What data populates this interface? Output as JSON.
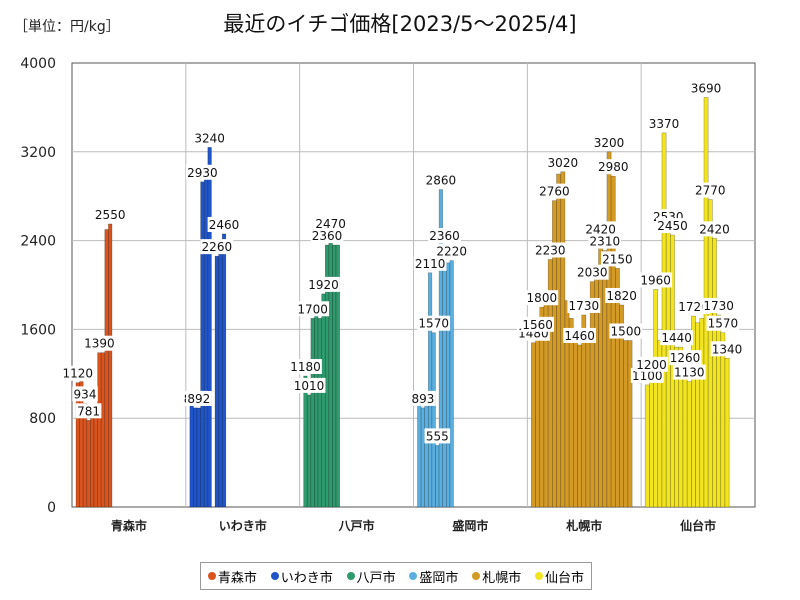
{
  "unit_label": "［単位：円/kg］",
  "chart_data": {
    "type": "bar",
    "title": "最近のイチゴ価格[2023/5～2025/4]",
    "ylabel": "円/kg",
    "ylim": [
      0,
      4000
    ],
    "yticks": [
      0,
      800,
      1600,
      2400,
      3200,
      4000
    ],
    "grid": true,
    "legend_position": "bottom",
    "series": [
      {
        "name": "青森市",
        "color": "#d9541e",
        "values": [
          1120,
          1130,
          934,
          781,
          800,
          900,
          1390,
          1390,
          2500,
          2550
        ]
      },
      {
        "name": "いわき市",
        "color": "#1f55c8",
        "values": [
          980,
          893,
          892,
          2930,
          2950,
          3240,
          null,
          2260,
          2300,
          2460
        ]
      },
      {
        "name": "八戸市",
        "color": "#2e9a6e",
        "values": [
          1180,
          1010,
          1700,
          1750,
          1700,
          1920,
          2360,
          2470,
          2360,
          2360
        ]
      },
      {
        "name": "盛岡市",
        "color": "#5aafe0",
        "values": [
          960,
          893,
          930,
          2110,
          1570,
          555,
          2860,
          2360,
          2200,
          2220
        ]
      },
      {
        "name": "札幌市",
        "color": "#d49a26",
        "values": [
          1480,
          1560,
          1800,
          1860,
          2230,
          2760,
          3000,
          3020,
          1860,
          1700,
          1560,
          1460,
          1730,
          1500,
          2030,
          2150,
          2420,
          2310,
          3200,
          2980,
          2150,
          1820,
          1500,
          1500
        ]
      },
      {
        "name": "仙台市",
        "color": "#f2e41f",
        "values": [
          1100,
          1200,
          1960,
          1500,
          3370,
          2530,
          2450,
          1440,
          1440,
          1260,
          1130,
          1720,
          1660,
          1700,
          3690,
          2770,
          2420,
          1730,
          1570,
          1340
        ]
      }
    ],
    "data_labels": [
      {
        "series": "青森市",
        "index": 0,
        "text": "1120"
      },
      {
        "series": "青森市",
        "index": 2,
        "text": "934"
      },
      {
        "series": "青森市",
        "index": 3,
        "text": "781"
      },
      {
        "series": "青森市",
        "index": 6,
        "text": "1390"
      },
      {
        "series": "青森市",
        "index": 9,
        "text": "2550"
      },
      {
        "series": "いわき市",
        "index": 1,
        "text": "893"
      },
      {
        "series": "いわき市",
        "index": 2,
        "text": "892"
      },
      {
        "series": "いわき市",
        "index": 3,
        "text": "2930"
      },
      {
        "series": "いわき市",
        "index": 5,
        "text": "3240"
      },
      {
        "series": "いわき市",
        "index": 7,
        "text": "2260"
      },
      {
        "series": "いわき市",
        "index": 9,
        "text": "2460"
      },
      {
        "series": "八戸市",
        "index": 0,
        "text": "1180"
      },
      {
        "series": "八戸市",
        "index": 1,
        "text": "1010"
      },
      {
        "series": "八戸市",
        "index": 2,
        "text": "1700"
      },
      {
        "series": "八戸市",
        "index": 5,
        "text": "1920"
      },
      {
        "series": "八戸市",
        "index": 6,
        "text": "2360"
      },
      {
        "series": "八戸市",
        "index": 7,
        "text": "2470"
      },
      {
        "series": "盛岡市",
        "index": 1,
        "text": "893"
      },
      {
        "series": "盛岡市",
        "index": 3,
        "text": "2110"
      },
      {
        "series": "盛岡市",
        "index": 4,
        "text": "1570"
      },
      {
        "series": "盛岡市",
        "index": 5,
        "text": "555"
      },
      {
        "series": "盛岡市",
        "index": 6,
        "text": "2860"
      },
      {
        "series": "盛岡市",
        "index": 7,
        "text": "2360"
      },
      {
        "series": "盛岡市",
        "index": 9,
        "text": "2220"
      },
      {
        "series": "札幌市",
        "index": 0,
        "text": "1480"
      },
      {
        "series": "札幌市",
        "index": 1,
        "text": "1560"
      },
      {
        "series": "札幌市",
        "index": 2,
        "text": "1800"
      },
      {
        "series": "札幌市",
        "index": 4,
        "text": "2230"
      },
      {
        "series": "札幌市",
        "index": 5,
        "text": "2760"
      },
      {
        "series": "札幌市",
        "index": 7,
        "text": "3020"
      },
      {
        "series": "札幌市",
        "index": 11,
        "text": "1460"
      },
      {
        "series": "札幌市",
        "index": 12,
        "text": "1730"
      },
      {
        "series": "札幌市",
        "index": 14,
        "text": "2030"
      },
      {
        "series": "札幌市",
        "index": 16,
        "text": "2420"
      },
      {
        "series": "札幌市",
        "index": 17,
        "text": "2310"
      },
      {
        "series": "札幌市",
        "index": 18,
        "text": "3200"
      },
      {
        "series": "札幌市",
        "index": 19,
        "text": "2980"
      },
      {
        "series": "札幌市",
        "index": 20,
        "text": "2150"
      },
      {
        "series": "札幌市",
        "index": 21,
        "text": "1820"
      },
      {
        "series": "札幌市",
        "index": 22,
        "text": "1500"
      },
      {
        "series": "仙台市",
        "index": 0,
        "text": "1100"
      },
      {
        "series": "仙台市",
        "index": 1,
        "text": "1200"
      },
      {
        "series": "仙台市",
        "index": 2,
        "text": "1960"
      },
      {
        "series": "仙台市",
        "index": 4,
        "text": "3370"
      },
      {
        "series": "仙台市",
        "index": 5,
        "text": "2530"
      },
      {
        "series": "仙台市",
        "index": 6,
        "text": "2450"
      },
      {
        "series": "仙台市",
        "index": 7,
        "text": "1440"
      },
      {
        "series": "仙台市",
        "index": 9,
        "text": "1260"
      },
      {
        "series": "仙台市",
        "index": 10,
        "text": "1130"
      },
      {
        "series": "仙台市",
        "index": 11,
        "text": "1720"
      },
      {
        "series": "仙台市",
        "index": 14,
        "text": "3690"
      },
      {
        "series": "仙台市",
        "index": 15,
        "text": "2770"
      },
      {
        "series": "仙台市",
        "index": 16,
        "text": "2420"
      },
      {
        "series": "仙台市",
        "index": 17,
        "text": "1730"
      },
      {
        "series": "仙台市",
        "index": 18,
        "text": "1570"
      },
      {
        "series": "仙台市",
        "index": 19,
        "text": "1340"
      }
    ]
  }
}
